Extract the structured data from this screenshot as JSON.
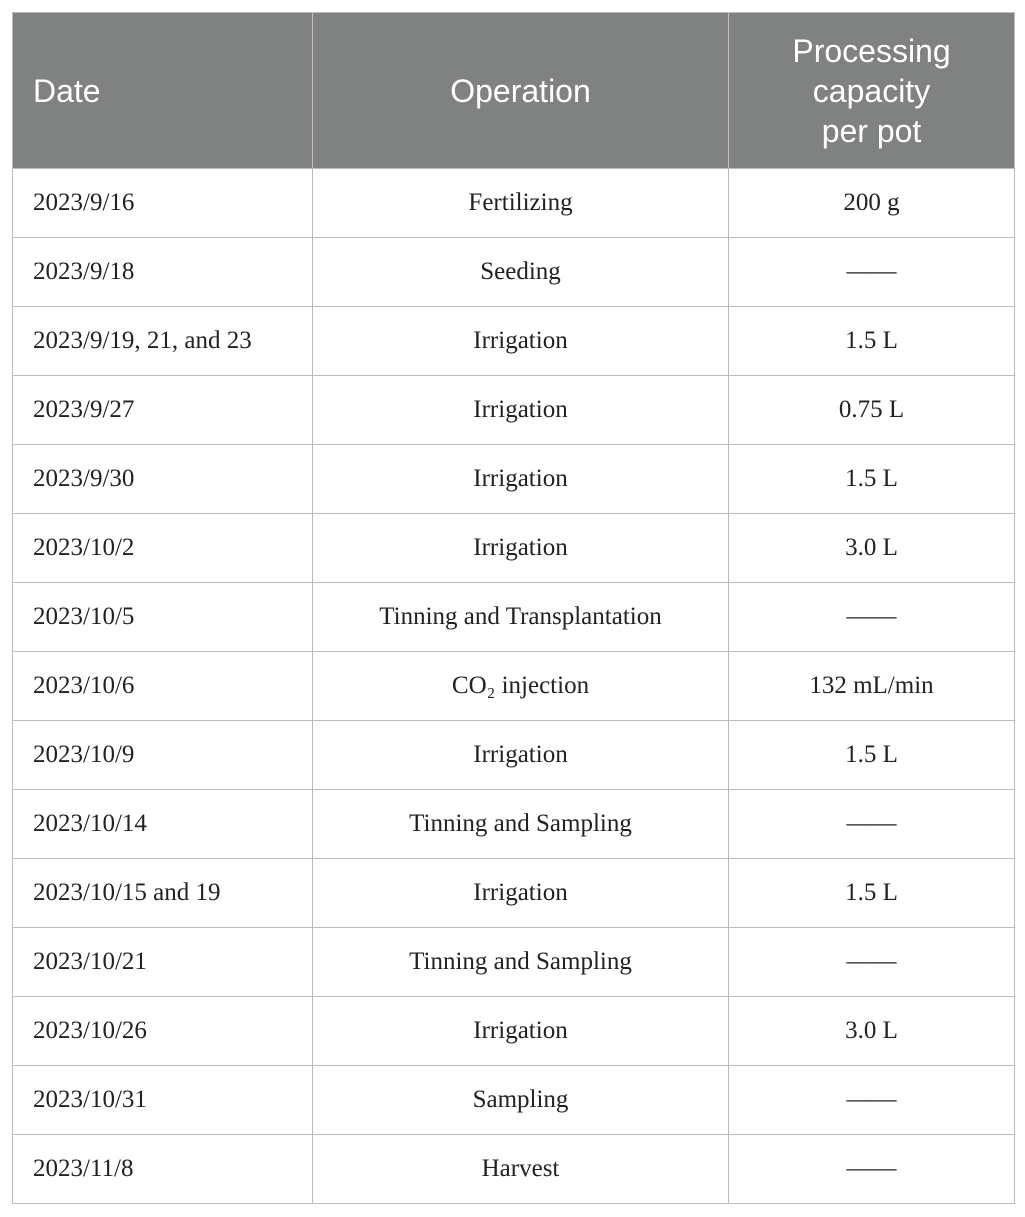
{
  "table": {
    "header": [
      "Date",
      "Operation",
      "Processing capacity per pot"
    ],
    "rows": [
      [
        "2023/9/16",
        "Fertilizing",
        "200 g"
      ],
      [
        "2023/9/18",
        "Seeding",
        "——"
      ],
      [
        "2023/9/19, 21, and 23",
        "Irrigation",
        "1.5 L"
      ],
      [
        "2023/9/27",
        "Irrigation",
        "0.75 L"
      ],
      [
        "2023/9/30",
        "Irrigation",
        "1.5 L"
      ],
      [
        "2023/10/2",
        "Irrigation",
        "3.0 L"
      ],
      [
        "2023/10/5",
        "Tinning and Transplantation",
        "——"
      ],
      [
        "2023/10/6",
        "CO₂ injection",
        "132 mL/min"
      ],
      [
        "2023/10/9",
        "Irrigation",
        "1.5 L"
      ],
      [
        "2023/10/14",
        "Tinning and Sampling",
        "——"
      ],
      [
        "2023/10/15 and 19",
        "Irrigation",
        "1.5 L"
      ],
      [
        "2023/10/21",
        "Tinning and Sampling",
        "——"
      ],
      [
        "2023/10/26",
        "Irrigation",
        "3.0 L"
      ],
      [
        "2023/10/31",
        "Sampling",
        "——"
      ],
      [
        "2023/11/8",
        "Harvest",
        "——"
      ]
    ]
  }
}
